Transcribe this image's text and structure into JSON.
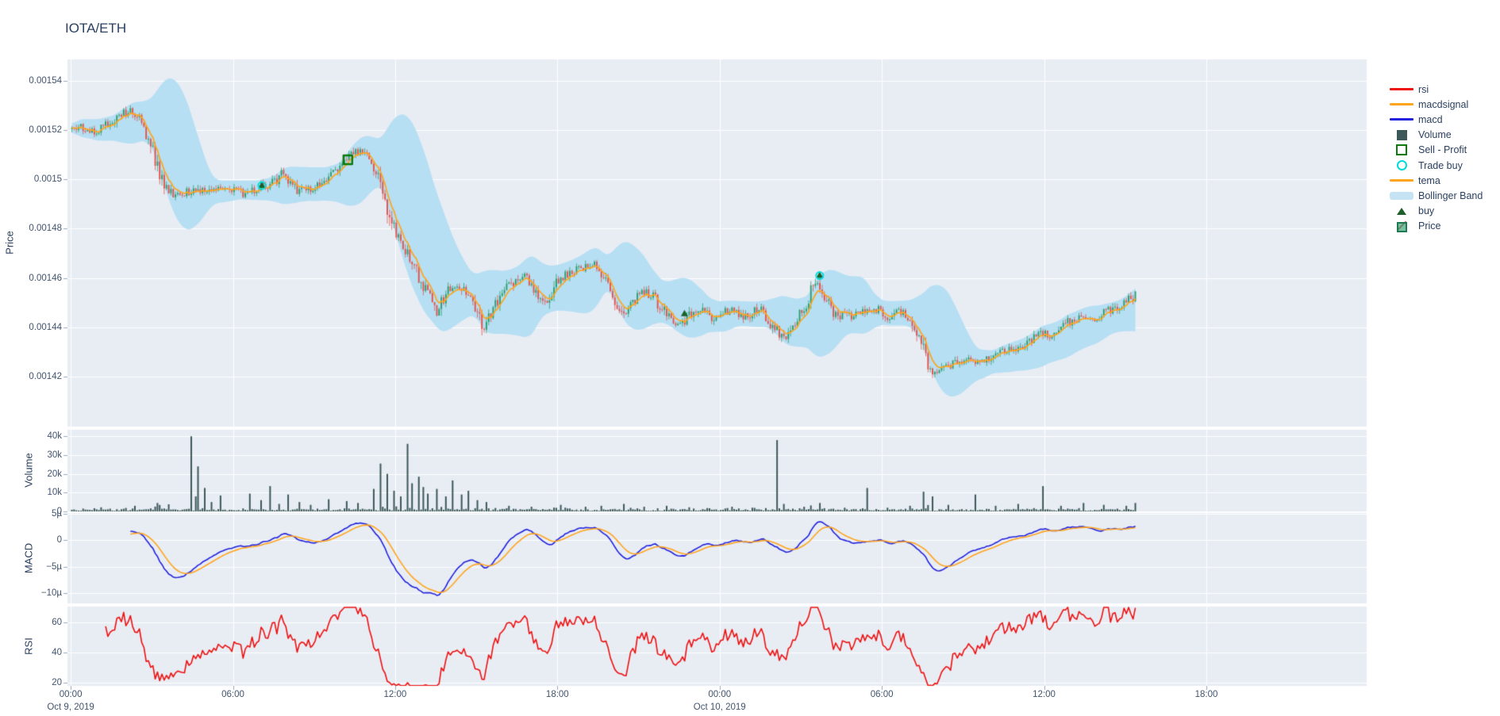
{
  "header": {
    "title": "IOTA/ETH"
  },
  "legend": {
    "items": [
      {
        "label": "rsi",
        "type": "line",
        "color": "#ee1111"
      },
      {
        "label": "macdsignal",
        "type": "line",
        "color": "#ffa51e"
      },
      {
        "label": "macd",
        "type": "line",
        "color": "#2323dd"
      },
      {
        "label": "Volume",
        "type": "square-filled",
        "color": "#3c5858"
      },
      {
        "label": "Sell - Profit",
        "type": "square-open",
        "color": "#0b7a0b"
      },
      {
        "label": "Trade buy",
        "type": "circle-open",
        "color": "#00dcdc"
      },
      {
        "label": "tema",
        "type": "line",
        "color": "#ffa51e"
      },
      {
        "label": "Bollinger Band",
        "type": "band",
        "color": "#c6e3f4"
      },
      {
        "label": "buy",
        "type": "triangle",
        "color": "#1c5f2a"
      },
      {
        "label": "Price",
        "type": "candle",
        "color": "#2f9e70"
      }
    ]
  },
  "chart_data": {
    "type": "financial-multi-panel",
    "title": "IOTA/ETH",
    "candle_interval_minutes": 5,
    "colors": {
      "plot_bg": "#e8edf4",
      "grid": "#ffffff",
      "text": "#2a3f5f",
      "tick_text": "#42546e",
      "up": "#2f9e70",
      "down": "#e25550",
      "tema": "#ffa51e",
      "macd": "#2323dd",
      "macdsignal": "#ffa51e",
      "rsi": "#ee1111",
      "volume_bar": "#3c5858",
      "bollinger": "#c6e3f4",
      "sell_profit": "#0b7a0b",
      "buy": "#1c5f2a",
      "trade_buy": "#00dcdc",
      "tick_mark": "#98a7bd"
    },
    "xaxis": {
      "range_hours": [
        -0.12,
        47.93
      ],
      "data_end_hour": 39.4,
      "ticks": [
        {
          "hour": 0,
          "label": "00:00"
        },
        {
          "hour": 6,
          "label": "06:00"
        },
        {
          "hour": 12,
          "label": "12:00"
        },
        {
          "hour": 18,
          "label": "18:00"
        },
        {
          "hour": 24,
          "label": "00:00"
        },
        {
          "hour": 30,
          "label": "06:00"
        },
        {
          "hour": 36,
          "label": "12:00"
        },
        {
          "hour": 42,
          "label": "18:00"
        }
      ],
      "date_labels": [
        {
          "hour": 0,
          "label": "Oct 9, 2019"
        },
        {
          "hour": 24,
          "label": "Oct 10, 2019"
        }
      ]
    },
    "panels": {
      "price": {
        "axis_title": "Price",
        "range": [
          0.0013997,
          0.0015487
        ],
        "ticks": [
          {
            "value": 0.00154,
            "label": "0.00154"
          },
          {
            "value": 0.00152,
            "label": "0.00152"
          },
          {
            "value": 0.0015,
            "label": "0.0015"
          },
          {
            "value": 0.00148,
            "label": "0.00148"
          },
          {
            "value": 0.00146,
            "label": "0.00146"
          },
          {
            "value": 0.00144,
            "label": "0.00144"
          },
          {
            "value": 0.00142,
            "label": "0.00142"
          }
        ],
        "trend_waypoints": [
          [
            0,
            0.0015205
          ],
          [
            0.4,
            0.0015215
          ],
          [
            0.8,
            0.0015195
          ],
          [
            1.2,
            0.001521
          ],
          [
            1.6,
            0.0015235
          ],
          [
            2.0,
            0.0015275
          ],
          [
            2.3,
            0.0015285
          ],
          [
            2.6,
            0.001523
          ],
          [
            2.9,
            0.001516
          ],
          [
            3.2,
            0.001505
          ],
          [
            3.5,
            0.001496
          ],
          [
            3.8,
            0.0014935
          ],
          [
            4.2,
            0.0014945
          ],
          [
            4.6,
            0.0014965
          ],
          [
            5.0,
            0.001494
          ],
          [
            5.5,
            0.0014955
          ],
          [
            6.0,
            0.0014965
          ],
          [
            6.5,
            0.001494
          ],
          [
            7.0,
            0.001497
          ],
          [
            7.5,
            0.0014985
          ],
          [
            7.8,
            0.001503
          ],
          [
            8.1,
            0.001499
          ],
          [
            8.5,
            0.001495
          ],
          [
            9.0,
            0.0014965
          ],
          [
            9.4,
            0.001499
          ],
          [
            9.8,
            0.001503
          ],
          [
            10.2,
            0.001508
          ],
          [
            10.5,
            0.0015105
          ],
          [
            10.9,
            0.001511
          ],
          [
            11.2,
            0.001506
          ],
          [
            11.5,
            0.001499
          ],
          [
            11.8,
            0.001484
          ],
          [
            12.1,
            0.001476
          ],
          [
            12.4,
            0.00147
          ],
          [
            12.7,
            0.001465
          ],
          [
            13.0,
            0.001458
          ],
          [
            13.3,
            0.001451
          ],
          [
            13.55,
            0.001445
          ],
          [
            13.8,
            0.001452
          ],
          [
            14.1,
            0.001457
          ],
          [
            14.5,
            0.001455
          ],
          [
            14.9,
            0.001452
          ],
          [
            15.25,
            0.0014385
          ],
          [
            15.6,
            0.0014465
          ],
          [
            16.0,
            0.001454
          ],
          [
            16.4,
            0.001459
          ],
          [
            16.8,
            0.0014615
          ],
          [
            17.2,
            0.001455
          ],
          [
            17.6,
            0.00145
          ],
          [
            18.0,
            0.001458
          ],
          [
            18.5,
            0.0014625
          ],
          [
            19.0,
            0.001464
          ],
          [
            19.4,
            0.001465
          ],
          [
            19.8,
            0.001459
          ],
          [
            20.2,
            0.00145
          ],
          [
            20.5,
            0.001444
          ],
          [
            20.9,
            0.001452
          ],
          [
            21.3,
            0.001455
          ],
          [
            21.7,
            0.00145
          ],
          [
            22.1,
            0.001444
          ],
          [
            22.5,
            0.00144
          ],
          [
            22.9,
            0.001445
          ],
          [
            23.3,
            0.001448
          ],
          [
            23.7,
            0.001444
          ],
          [
            24.0,
            0.001446
          ],
          [
            24.5,
            0.001447
          ],
          [
            25.0,
            0.001444
          ],
          [
            25.5,
            0.001448
          ],
          [
            26.0,
            0.00144
          ],
          [
            26.4,
            0.0014345
          ],
          [
            26.8,
            0.001442
          ],
          [
            27.2,
            0.00145
          ],
          [
            27.6,
            0.0014595
          ],
          [
            27.9,
            0.001452
          ],
          [
            28.2,
            0.001446
          ],
          [
            28.7,
            0.001444
          ],
          [
            29.2,
            0.0014465
          ],
          [
            29.7,
            0.001448
          ],
          [
            30.2,
            0.001444
          ],
          [
            30.7,
            0.001446
          ],
          [
            31.1,
            0.001444
          ],
          [
            31.4,
            0.001435
          ],
          [
            31.7,
            0.001424
          ],
          [
            32.0,
            0.001422
          ],
          [
            32.4,
            0.001424
          ],
          [
            32.8,
            0.0014255
          ],
          [
            33.3,
            0.0014265
          ],
          [
            33.8,
            0.001427
          ],
          [
            34.3,
            0.0014295
          ],
          [
            34.8,
            0.0014315
          ],
          [
            35.3,
            0.001433
          ],
          [
            35.8,
            0.001438
          ],
          [
            36.3,
            0.001437
          ],
          [
            36.8,
            0.0014415
          ],
          [
            37.3,
            0.001444
          ],
          [
            37.8,
            0.001443
          ],
          [
            38.3,
            0.0014465
          ],
          [
            38.8,
            0.001449
          ],
          [
            39.1,
            0.001451
          ],
          [
            39.4,
            0.001453
          ]
        ],
        "markers": {
          "sell_profit": [
            [
              10.25,
              0.001508
            ]
          ],
          "buy": [
            [
              7.07,
              0.0014975
            ],
            [
              22.7,
              0.0014455
            ],
            [
              27.7,
              0.001461
            ]
          ],
          "trade_buy": [
            [
              7.07,
              0.0014975
            ],
            [
              27.7,
              0.001461
            ]
          ]
        }
      },
      "volume": {
        "axis_title": "Volume",
        "range": [
          0,
          43500
        ],
        "ticks": [
          {
            "value": 40000,
            "label": "40k"
          },
          {
            "value": 30000,
            "label": "30k"
          },
          {
            "value": 20000,
            "label": "20k"
          },
          {
            "value": 10000,
            "label": "10k"
          },
          {
            "value": 0,
            "label": "0"
          }
        ],
        "spikes": [
          [
            0.4,
            1500
          ],
          [
            1.1,
            2200
          ],
          [
            2.3,
            3000
          ],
          [
            3.2,
            4500
          ],
          [
            3.6,
            3800
          ],
          [
            4.4,
            40000
          ],
          [
            4.55,
            8000
          ],
          [
            4.7,
            24000
          ],
          [
            4.9,
            12500
          ],
          [
            5.2,
            5000
          ],
          [
            5.5,
            8500
          ],
          [
            6.6,
            9500
          ],
          [
            7.0,
            6000
          ],
          [
            7.3,
            13500
          ],
          [
            7.7,
            4000
          ],
          [
            8.0,
            9000
          ],
          [
            8.4,
            5000
          ],
          [
            8.8,
            3500
          ],
          [
            9.5,
            6500
          ],
          [
            10.2,
            5500
          ],
          [
            10.6,
            4500
          ],
          [
            11.2,
            12000
          ],
          [
            11.45,
            25500
          ],
          [
            11.7,
            20000
          ],
          [
            11.9,
            11000
          ],
          [
            12.2,
            8000
          ],
          [
            12.4,
            36000
          ],
          [
            12.55,
            15000
          ],
          [
            12.8,
            18500
          ],
          [
            13.0,
            13000
          ],
          [
            13.2,
            9500
          ],
          [
            13.5,
            12000
          ],
          [
            13.8,
            8000
          ],
          [
            14.1,
            16500
          ],
          [
            14.4,
            9000
          ],
          [
            14.7,
            11000
          ],
          [
            15.0,
            6000
          ],
          [
            15.3,
            5000
          ],
          [
            16.2,
            3000
          ],
          [
            17.0,
            2500
          ],
          [
            18.1,
            3500
          ],
          [
            19.0,
            2500
          ],
          [
            19.6,
            3000
          ],
          [
            20.4,
            4000
          ],
          [
            21.2,
            2500
          ],
          [
            22.0,
            3000
          ],
          [
            22.8,
            2200
          ],
          [
            23.5,
            1800
          ],
          [
            24.4,
            2500
          ],
          [
            25.2,
            2000
          ],
          [
            26.1,
            38000
          ],
          [
            26.35,
            4000
          ],
          [
            27.1,
            2500
          ],
          [
            27.7,
            4500
          ],
          [
            28.6,
            2000
          ],
          [
            29.4,
            12500
          ],
          [
            30.2,
            2000
          ],
          [
            31.0,
            3000
          ],
          [
            31.5,
            10500
          ],
          [
            31.8,
            8000
          ],
          [
            32.4,
            3500
          ],
          [
            33.4,
            9000
          ],
          [
            34.2,
            3000
          ],
          [
            35.0,
            4000
          ],
          [
            35.9,
            13500
          ],
          [
            36.6,
            3000
          ],
          [
            37.4,
            4500
          ],
          [
            38.2,
            3500
          ],
          [
            39.0,
            3000
          ],
          [
            39.3,
            4500
          ]
        ]
      },
      "macd": {
        "axis_title": "MACD",
        "range": [
          -11.9,
          5.1
        ],
        "unit": "micro",
        "ticks": [
          {
            "value": 5,
            "label": "5µ"
          },
          {
            "value": 0,
            "label": "0"
          },
          {
            "value": -5,
            "label": "−5µ"
          },
          {
            "value": -10,
            "label": "−10µ"
          }
        ]
      },
      "rsi": {
        "axis_title": "RSI",
        "range": [
          17.9,
          70.5
        ],
        "ticks": [
          {
            "value": 60,
            "label": "60"
          },
          {
            "value": 40,
            "label": "40"
          },
          {
            "value": 20,
            "label": "20"
          }
        ]
      }
    }
  }
}
